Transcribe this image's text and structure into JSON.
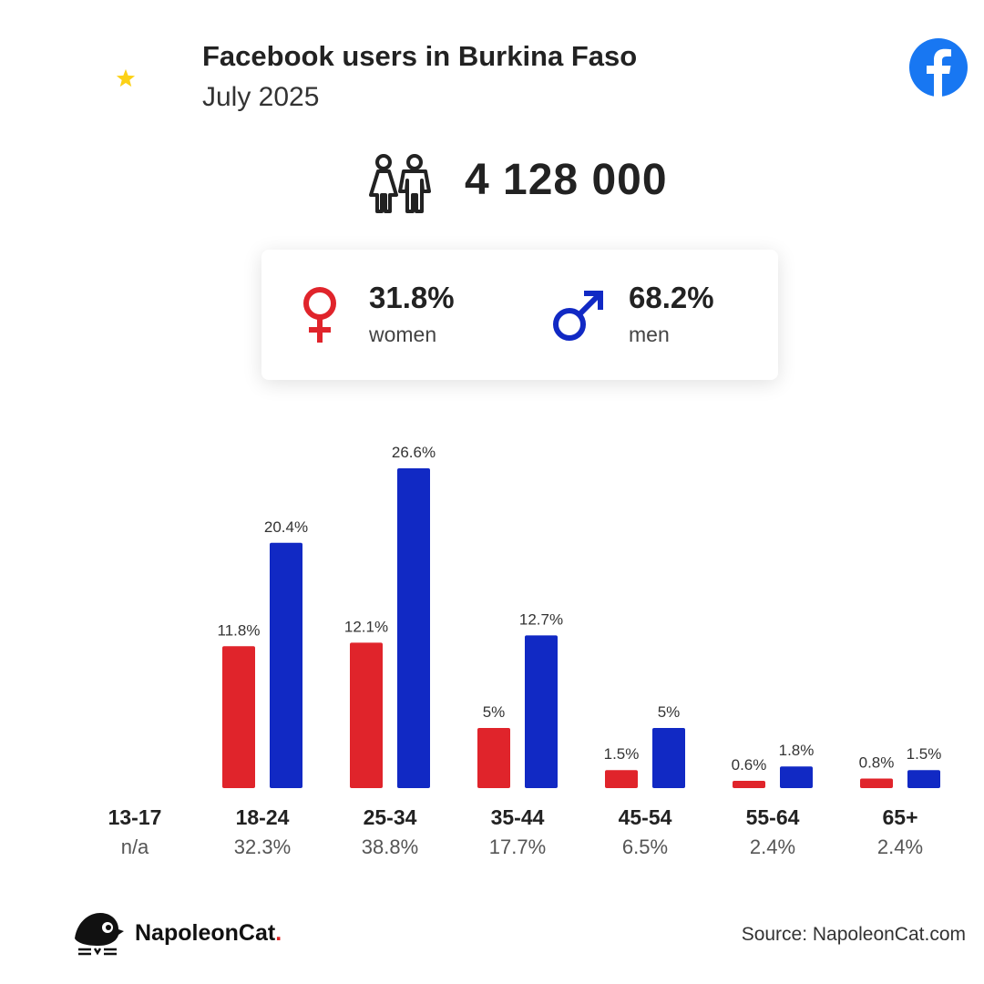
{
  "header": {
    "title": "Facebook users in Burkina Faso",
    "subtitle": "July 2025"
  },
  "flag": {
    "top_color": "#ef2b2d",
    "bottom_color": "#009e49",
    "star_color": "#fcd116"
  },
  "total_users": "4 128 000",
  "gender": {
    "female": {
      "pct": "31.8%",
      "label": "women",
      "color": "#e0242b",
      "icon": "female-icon"
    },
    "male": {
      "pct": "68.2%",
      "label": "men",
      "color": "#1129c4",
      "icon": "male-icon"
    }
  },
  "age_groups": [
    {
      "label": "13-17",
      "total": "n/a"
    },
    {
      "label": "18-24",
      "total": "32.3%"
    },
    {
      "label": "25-34",
      "total": "38.8%"
    },
    {
      "label": "35-44",
      "total": "17.7%"
    },
    {
      "label": "45-54",
      "total": "6.5%"
    },
    {
      "label": "55-64",
      "total": "2.4%"
    },
    {
      "label": "65+",
      "total": "2.4%"
    }
  ],
  "chart_data": {
    "type": "bar",
    "categories": [
      "13-17",
      "18-24",
      "25-34",
      "35-44",
      "45-54",
      "55-64",
      "65+"
    ],
    "series": [
      {
        "name": "women",
        "color": "#e0242b",
        "values": [
          null,
          11.8,
          12.1,
          5,
          1.5,
          0.6,
          0.8
        ],
        "labels": [
          null,
          "11.8%",
          "12.1%",
          "5%",
          "1.5%",
          "0.6%",
          "0.8%"
        ]
      },
      {
        "name": "men",
        "color": "#1129c4",
        "values": [
          null,
          20.4,
          26.6,
          12.7,
          5,
          1.8,
          1.5
        ],
        "labels": [
          null,
          "20.4%",
          "26.6%",
          "12.7%",
          "5%",
          "1.8%",
          "1.5%"
        ]
      }
    ],
    "ylim": [
      0,
      26.6
    ],
    "grid": false,
    "legend": "none"
  },
  "footer": {
    "brand": "NapoleonCat",
    "brand_dot": ".",
    "source": "Source: NapoleonCat.com"
  }
}
